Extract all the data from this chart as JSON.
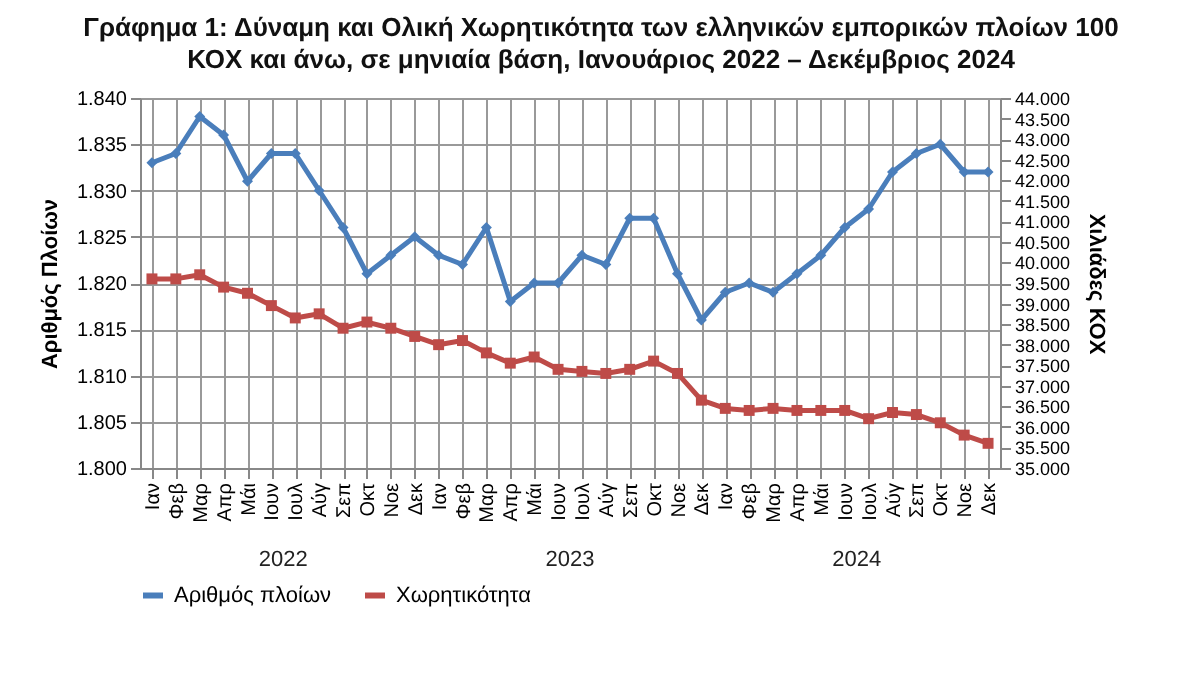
{
  "chart_data": {
    "type": "line",
    "title": "Γράφημα 1: Δύναμη και Ολική Χωρητικότητα των ελληνικών εμπορικών πλοίων 100 ΚΟΧ και άνω, σε μηνιαία βάση, Ιανουάριος 2022 – Δεκέμβριος 2024",
    "categories": [
      "Ιαν",
      "Φεβ",
      "Μαρ",
      "Απρ",
      "Μάι",
      "Ιουν",
      "Ιουλ",
      "Αύγ",
      "Σεπ",
      "Οκτ",
      "Νοε",
      "Δεκ",
      "Ιαν",
      "Φεβ",
      "Μαρ",
      "Απρ",
      "Μάι",
      "Ιουν",
      "Ιουλ",
      "Αύγ",
      "Σεπ",
      "Οκτ",
      "Νοε",
      "Δεκ",
      "Ιαν",
      "Φεβ",
      "Μαρ",
      "Απρ",
      "Μάι",
      "Ιουν",
      "Ιουλ",
      "Αύγ",
      "Σεπ",
      "Οκτ",
      "Νοε",
      "Δεκ"
    ],
    "annotations": [
      "2022",
      "2023",
      "2024"
    ],
    "ylabel": "Αριθμός Πλοίων",
    "y2label": "Χιλιάδες ΚΟΧ",
    "ylim": [
      1800,
      1840
    ],
    "yticks": [
      {
        "value": 1800,
        "label": "1.800"
      },
      {
        "value": 1805,
        "label": "1.805"
      },
      {
        "value": 1810,
        "label": "1.810"
      },
      {
        "value": 1815,
        "label": "1.815"
      },
      {
        "value": 1820,
        "label": "1.820"
      },
      {
        "value": 1825,
        "label": "1.825"
      },
      {
        "value": 1830,
        "label": "1.830"
      },
      {
        "value": 1835,
        "label": "1.835"
      },
      {
        "value": 1840,
        "label": "1.840"
      }
    ],
    "y2lim": [
      35000,
      44000
    ],
    "y2ticks": [
      {
        "value": 35000,
        "label": "35.000"
      },
      {
        "value": 35500,
        "label": "35.500"
      },
      {
        "value": 36000,
        "label": "36.000"
      },
      {
        "value": 36500,
        "label": "36.500"
      },
      {
        "value": 37000,
        "label": "37.000"
      },
      {
        "value": 37500,
        "label": "37.500"
      },
      {
        "value": 38000,
        "label": "38.000"
      },
      {
        "value": 38500,
        "label": "38.500"
      },
      {
        "value": 39000,
        "label": "39.000"
      },
      {
        "value": 39500,
        "label": "39.500"
      },
      {
        "value": 40000,
        "label": "40.000"
      },
      {
        "value": 40500,
        "label": "40.500"
      },
      {
        "value": 41000,
        "label": "41.000"
      },
      {
        "value": 41500,
        "label": "41.500"
      },
      {
        "value": 42000,
        "label": "42.000"
      },
      {
        "value": 42500,
        "label": "42.500"
      },
      {
        "value": 43000,
        "label": "43.000"
      },
      {
        "value": 43500,
        "label": "43.500"
      },
      {
        "value": 44000,
        "label": "44.000"
      }
    ],
    "grid": true,
    "legend": "bottom",
    "series": [
      {
        "name": "Αριθμός πλοίων",
        "color": "#4a7ebb",
        "marker": "diamond",
        "values": [
          1833,
          1834,
          1838,
          1836,
          1831,
          1834,
          1834,
          1830,
          1826,
          1821,
          1823,
          1825,
          1823,
          1822,
          1826,
          1818,
          1820,
          1820,
          1823,
          1822,
          1827,
          1827,
          1821,
          1816,
          1819,
          1820,
          1819,
          1821,
          1823,
          1826,
          1828,
          1832,
          1834,
          1835,
          1832,
          1832
        ]
      },
      {
        "name": "Χωρητικότητα",
        "color": "#be4b48",
        "marker": "square",
        "axis": "y2",
        "values": [
          39600,
          39600,
          39700,
          39400,
          39250,
          38950,
          38650,
          38750,
          38400,
          38550,
          38400,
          38200,
          38000,
          38100,
          37800,
          37550,
          37700,
          37400,
          37350,
          37300,
          37400,
          37600,
          37300,
          36650,
          36450,
          36400,
          36450,
          36400,
          36400,
          36400,
          36200,
          36350,
          36300,
          36100,
          35800,
          35600
        ]
      }
    ]
  }
}
